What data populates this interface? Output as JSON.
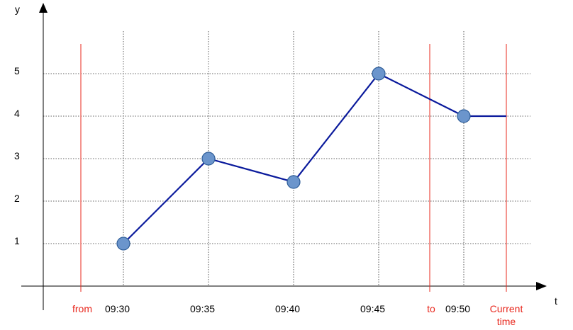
{
  "chart_data": {
    "type": "line",
    "xlabel": "t",
    "ylabel": "y",
    "x_ticks": [
      "09:30",
      "09:35",
      "09:40",
      "09:45",
      "09:50"
    ],
    "y_ticks": [
      "1",
      "2",
      "3",
      "4",
      "5"
    ],
    "series": [
      {
        "points": [
          {
            "x": "09:30",
            "y": 1.0
          },
          {
            "x": "09:35",
            "y": 3.0
          },
          {
            "x": "09:40",
            "y": 2.45
          },
          {
            "x": "09:45",
            "y": 5.0
          },
          {
            "x": "09:50",
            "y": 4.0
          },
          {
            "x": "09:52:30",
            "y": 4.0,
            "marker": false
          }
        ],
        "color": "#0a1a9c",
        "marker_color": "#6b95cc"
      }
    ],
    "reference_lines": [
      {
        "label": "from",
        "x": "09:27:30"
      },
      {
        "label": "to",
        "x": "09:48:00"
      },
      {
        "label": "Current time",
        "x": "09:52:30"
      }
    ],
    "reference_color": "#e8281e",
    "grid": "dashed"
  }
}
